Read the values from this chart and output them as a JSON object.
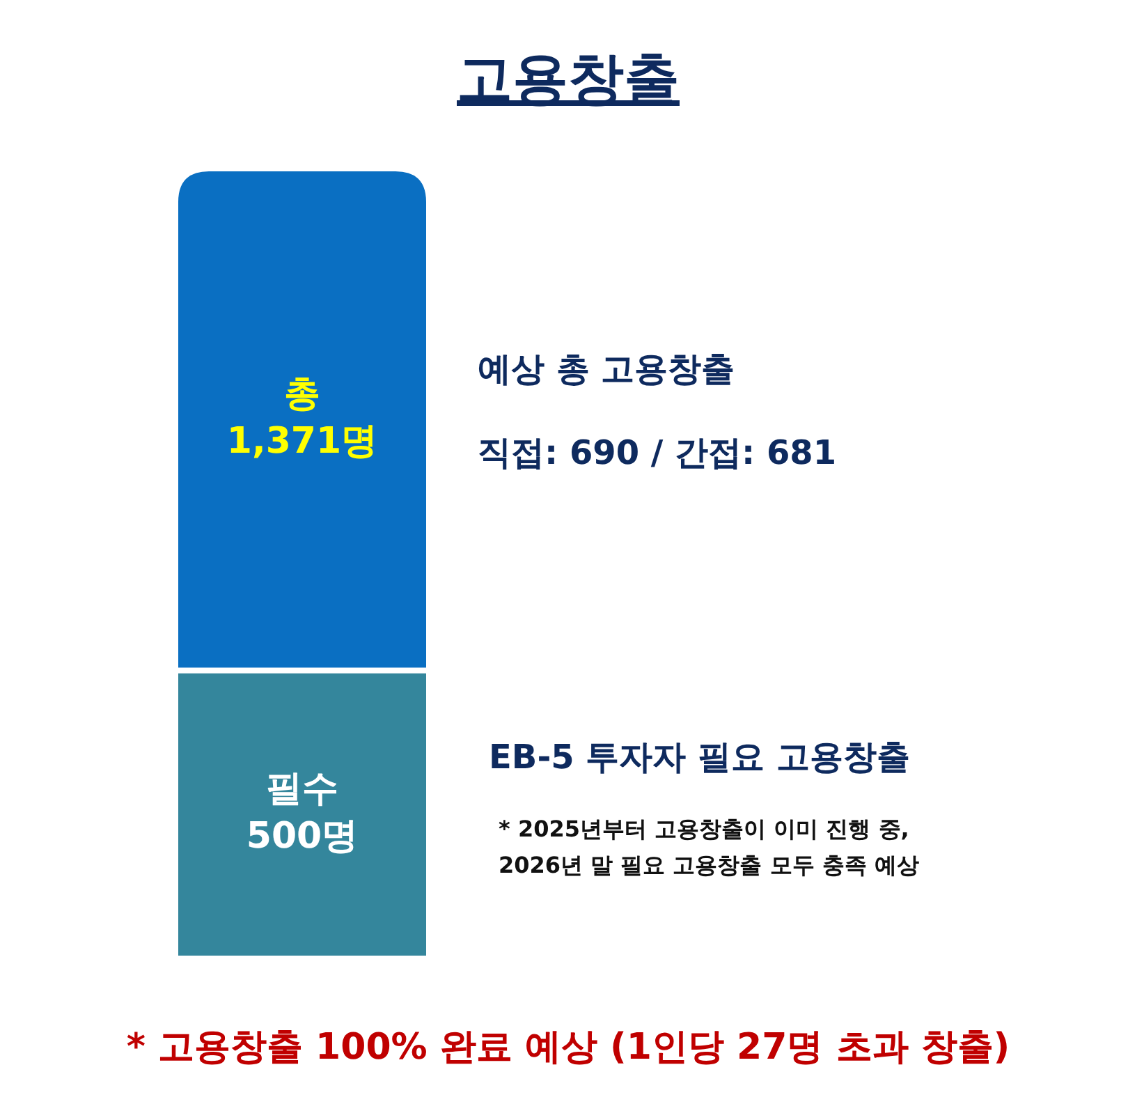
{
  "chart_data": {
    "type": "bar",
    "title": "고용창출",
    "stacked": true,
    "categories": [
      null
    ],
    "series": [
      {
        "color": "#34869c",
        "values": [
          500
        ],
        "value_labels": [
          "필수\n500명"
        ]
      },
      {
        "color": "#0a6fc2",
        "values": [
          871
        ],
        "value_labels": [
          null
        ]
      }
    ],
    "totals": [
      "총\n1,371명"
    ],
    "annotations": [
      "예상 총 고용창출",
      "직접: 690 / 간접: 681",
      "EB-5 투자자 필요 고용창출",
      "* 2025년부터 고용창출이 이미 진행 중,\n2026년 말 필요 고용창출 모두 충족 예상",
      "* 고용창출 100% 완료 예상 (1인당 27명 초과 창출)"
    ]
  }
}
